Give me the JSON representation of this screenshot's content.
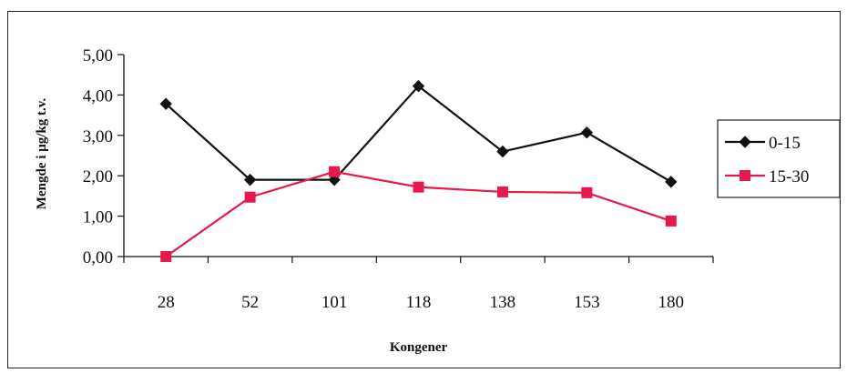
{
  "chart_data": {
    "type": "line",
    "categories": [
      "28",
      "52",
      "101",
      "118",
      "138",
      "153",
      "180"
    ],
    "series": [
      {
        "name": "0-15",
        "values": [
          3.78,
          1.9,
          1.9,
          4.22,
          2.6,
          3.07,
          1.85
        ],
        "color": "#111111",
        "marker": "diamond"
      },
      {
        "name": "15-30",
        "values": [
          0.0,
          1.47,
          2.1,
          1.72,
          1.6,
          1.58,
          0.88
        ],
        "color": "#e6194b",
        "marker": "square"
      }
    ],
    "xlabel": "Kongener",
    "ylabel": "Mengde i µg/kg t.v.",
    "ylim": [
      0,
      5
    ],
    "yticks": [
      "0,00",
      "1,00",
      "2,00",
      "3,00",
      "4,00",
      "5,00"
    ],
    "grid": false,
    "legend_position": "right"
  }
}
